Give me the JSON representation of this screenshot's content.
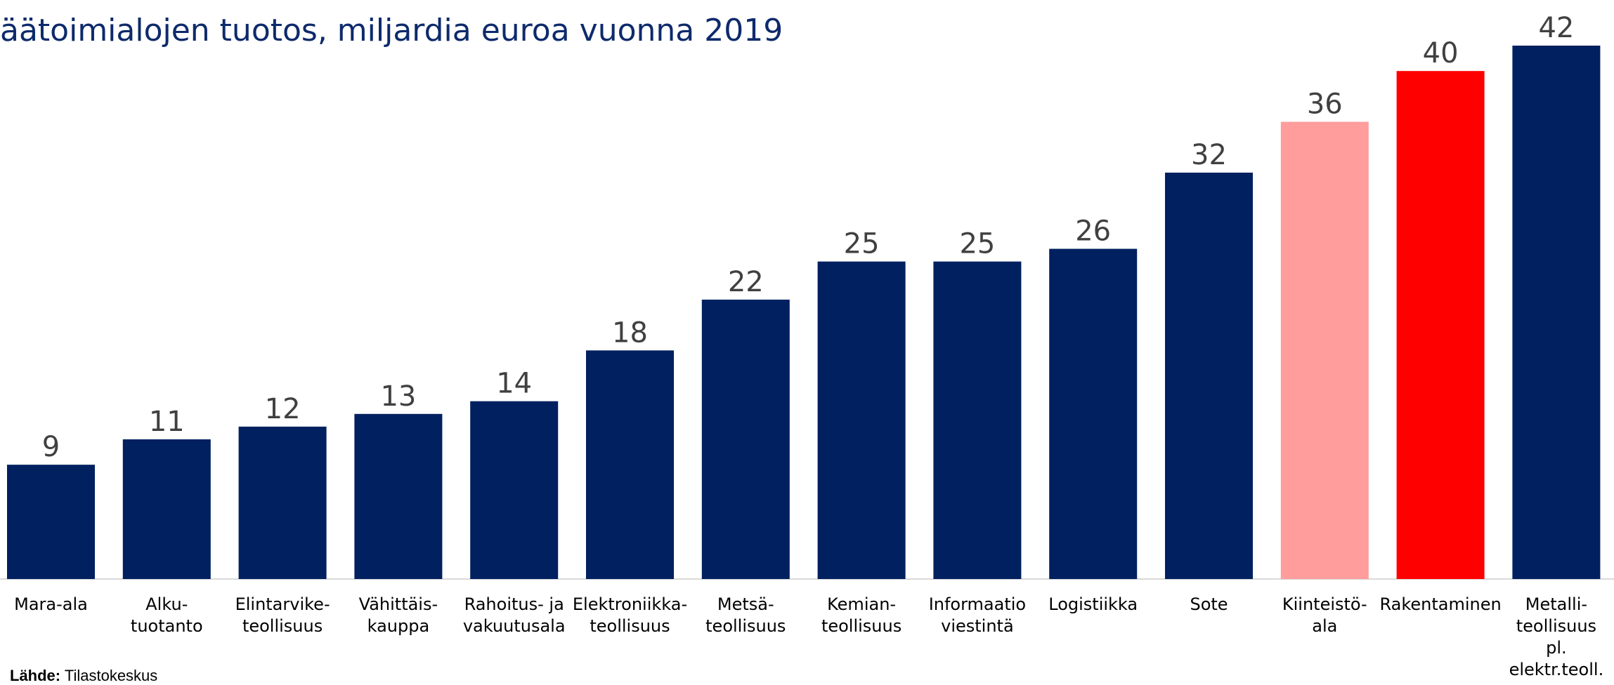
{
  "chart_data": {
    "type": "bar",
    "title": "äätoimialojen tuotos, miljardia euroa vuonna 2019",
    "categories": [
      [
        "Mara-ala"
      ],
      [
        "Alku-",
        "tuotanto"
      ],
      [
        "Elintarvike-",
        "teollisuus"
      ],
      [
        "Vähittäis-",
        "kauppa"
      ],
      [
        "Rahoitus- ja",
        "vakuutusala"
      ],
      [
        "Elektroniikka-",
        "teollisuus"
      ],
      [
        "Metsä-",
        "teollisuus"
      ],
      [
        "Kemian-",
        "teollisuus"
      ],
      [
        "Informaatio",
        "viestintä"
      ],
      [
        "Logistiikka"
      ],
      [
        "Sote"
      ],
      [
        "Kiinteistö-",
        "ala"
      ],
      [
        "Rakentaminen"
      ],
      [
        "Metalli-",
        "teollisuus",
        "pl.",
        "elektr.teoll."
      ]
    ],
    "values": [
      9,
      11,
      12,
      13,
      14,
      18,
      22,
      25,
      25,
      26,
      32,
      36,
      40,
      42
    ],
    "colors": [
      "#00205f",
      "#00205f",
      "#00205f",
      "#00205f",
      "#00205f",
      "#00205f",
      "#00205f",
      "#00205f",
      "#00205f",
      "#00205f",
      "#00205f",
      "#ff9c9c",
      "#ff0000",
      "#00205f"
    ],
    "ylim": [
      0,
      42
    ],
    "grid": false,
    "legend": "none"
  },
  "source": {
    "label": "Lähde:",
    "text": " Tilastokeskus"
  }
}
